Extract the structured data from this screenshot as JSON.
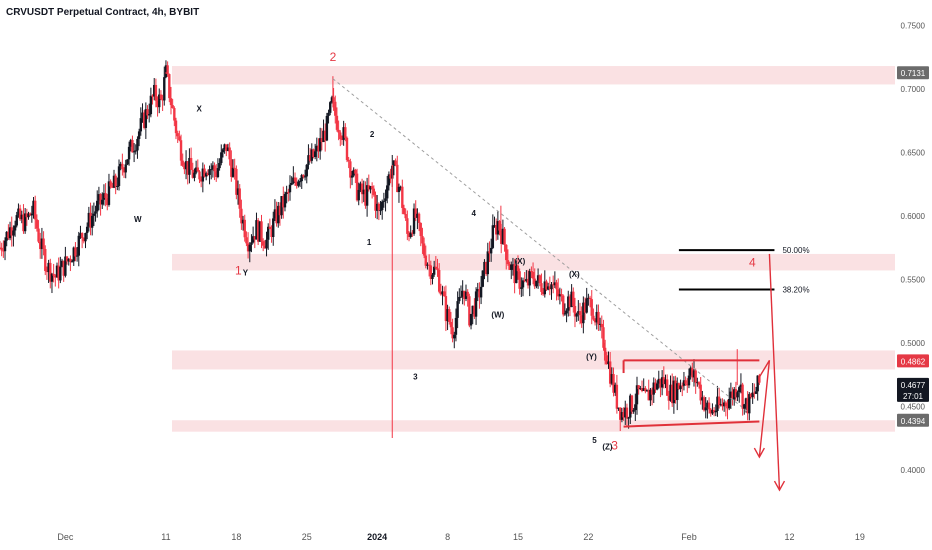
{
  "title": "CRVUSDT Perpetual Contract, 4h, BYBIT",
  "colors": {
    "up": "#131722",
    "down": "#f23645",
    "zone": "#f8d7da",
    "wave_red": "#e0303a",
    "dashed": "#9e9e9e",
    "label_dark": "#4a4a4a",
    "label_red": "#e53945",
    "label_black": "#131722"
  },
  "chart_data": {
    "type": "candlestick",
    "ylim": [
      0.3762,
      0.7637
    ],
    "y_ticks": [
      0.4,
      0.45,
      0.5,
      0.55,
      0.6,
      0.65,
      0.7,
      0.75
    ],
    "y_tick_labels": [
      "0.4000",
      "0.4500",
      "0.5000",
      "0.5500",
      "0.6000",
      "0.6500",
      "0.7000",
      "0.7500"
    ],
    "x_range_days": [
      -6.5,
      80
    ],
    "x_ticks": [
      {
        "label": "Dec",
        "day": 0,
        "bold": false
      },
      {
        "label": "11",
        "day": 10,
        "bold": false
      },
      {
        "label": "18",
        "day": 17,
        "bold": false
      },
      {
        "label": "25",
        "day": 24,
        "bold": false
      },
      {
        "label": "2024",
        "day": 31,
        "bold": true
      },
      {
        "label": "8",
        "day": 38,
        "bold": false
      },
      {
        "label": "15",
        "day": 45,
        "bold": false
      },
      {
        "label": "22",
        "day": 52,
        "bold": false
      },
      {
        "label": "Feb",
        "day": 62,
        "bold": false
      },
      {
        "label": "12",
        "day": 72,
        "bold": false
      },
      {
        "label": "19",
        "day": 79,
        "bold": false
      }
    ],
    "price_path": [
      [
        -6.5,
        0.575
      ],
      [
        -5.8,
        0.585
      ],
      [
        -5.0,
        0.598
      ],
      [
        -4.0,
        0.595
      ],
      [
        -3.2,
        0.605
      ],
      [
        -2.5,
        0.578
      ],
      [
        -1.8,
        0.56
      ],
      [
        -1.0,
        0.552
      ],
      [
        0.0,
        0.562
      ],
      [
        1.0,
        0.575
      ],
      [
        2.0,
        0.59
      ],
      [
        3.0,
        0.605
      ],
      [
        4.0,
        0.615
      ],
      [
        5.0,
        0.625
      ],
      [
        6.0,
        0.645
      ],
      [
        7.0,
        0.66
      ],
      [
        8.0,
        0.68
      ],
      [
        8.8,
        0.695
      ],
      [
        9.5,
        0.69
      ],
      [
        10.0,
        0.712
      ],
      [
        10.5,
        0.69
      ],
      [
        11.2,
        0.66
      ],
      [
        12.0,
        0.64
      ],
      [
        13.0,
        0.63
      ],
      [
        14.0,
        0.64
      ],
      [
        15.0,
        0.635
      ],
      [
        16.0,
        0.655
      ],
      [
        16.8,
        0.63
      ],
      [
        17.5,
        0.6
      ],
      [
        18.2,
        0.58
      ],
      [
        19.0,
        0.59
      ],
      [
        20.0,
        0.58
      ],
      [
        21.0,
        0.6
      ],
      [
        22.0,
        0.615
      ],
      [
        23.0,
        0.63
      ],
      [
        24.0,
        0.64
      ],
      [
        25.0,
        0.65
      ],
      [
        26.0,
        0.67
      ],
      [
        26.5,
        0.688
      ],
      [
        27.0,
        0.675
      ],
      [
        27.6,
        0.665
      ],
      [
        28.3,
        0.64
      ],
      [
        29.0,
        0.62
      ],
      [
        29.8,
        0.615
      ],
      [
        30.5,
        0.62
      ],
      [
        31.2,
        0.6
      ],
      [
        31.8,
        0.62
      ],
      [
        32.5,
        0.64
      ],
      [
        33.3,
        0.62
      ],
      [
        34.0,
        0.585
      ],
      [
        34.8,
        0.6
      ],
      [
        35.5,
        0.575
      ],
      [
        36.2,
        0.56
      ],
      [
        37.0,
        0.555
      ],
      [
        37.8,
        0.525
      ],
      [
        38.5,
        0.51
      ],
      [
        39.0,
        0.525
      ],
      [
        39.6,
        0.545
      ],
      [
        40.2,
        0.52
      ],
      [
        41.0,
        0.535
      ],
      [
        41.8,
        0.56
      ],
      [
        42.5,
        0.585
      ],
      [
        43.0,
        0.595
      ],
      [
        43.6,
        0.58
      ],
      [
        44.2,
        0.56
      ],
      [
        45.0,
        0.55
      ],
      [
        45.8,
        0.545
      ],
      [
        46.5,
        0.553
      ],
      [
        47.2,
        0.545
      ],
      [
        48.0,
        0.55
      ],
      [
        48.8,
        0.54
      ],
      [
        49.5,
        0.53
      ],
      [
        50.2,
        0.535
      ],
      [
        51.0,
        0.52
      ],
      [
        51.8,
        0.53
      ],
      [
        52.4,
        0.53
      ],
      [
        53.0,
        0.51
      ],
      [
        53.6,
        0.5
      ],
      [
        54.2,
        0.475
      ],
      [
        54.8,
        0.455
      ],
      [
        55.3,
        0.445
      ],
      [
        55.8,
        0.447
      ],
      [
        56.4,
        0.452
      ],
      [
        57.0,
        0.46
      ],
      [
        57.6,
        0.455
      ],
      [
        58.2,
        0.462
      ],
      [
        58.8,
        0.468
      ],
      [
        59.5,
        0.47
      ],
      [
        60.2,
        0.46
      ],
      [
        60.8,
        0.465
      ],
      [
        61.5,
        0.472
      ],
      [
        62.2,
        0.475
      ],
      [
        62.8,
        0.47
      ],
      [
        63.4,
        0.455
      ],
      [
        64.0,
        0.445
      ],
      [
        64.6,
        0.448
      ],
      [
        65.2,
        0.45
      ],
      [
        65.8,
        0.455
      ],
      [
        66.4,
        0.46
      ],
      [
        67.0,
        0.47
      ],
      [
        67.5,
        0.45
      ],
      [
        68.0,
        0.452
      ],
      [
        68.5,
        0.46
      ],
      [
        69.0,
        0.468
      ]
    ],
    "spikes": [
      {
        "day": 10.0,
        "high": 0.7131
      },
      {
        "day": 26.6,
        "high": 0.71
      },
      {
        "day": 32.5,
        "low": 0.425
      },
      {
        "day": 43.3,
        "high": 0.608
      },
      {
        "day": 53.6,
        "low": 0.486
      },
      {
        "day": 66.8,
        "high": 0.495
      }
    ],
    "zones": [
      {
        "top": 0.718,
        "bottom": 0.7035
      },
      {
        "top": 0.57,
        "bottom": 0.557
      },
      {
        "top": 0.494,
        "bottom": 0.479
      },
      {
        "top": 0.439,
        "bottom": 0.43
      }
    ],
    "fib_levels": [
      {
        "label": "50.00%",
        "price": 0.573,
        "day_start": 61.0,
        "day_end": 70.5
      },
      {
        "label": "38.20%",
        "price": 0.542,
        "day_start": 61.0,
        "day_end": 70.5
      }
    ],
    "range_box": {
      "top": 0.4862,
      "bottom": 0.434,
      "day_start": 55.5,
      "day_end": 69.0
    },
    "trendline": {
      "day_start": 26.6,
      "price_start": 0.708,
      "day_end": 67.8,
      "price_end": 0.446
    },
    "arrows": [
      {
        "day_start": 69.0,
        "price_start": 0.473,
        "day_mid": 70.0,
        "price_mid": 0.4862,
        "day_end": 69.0,
        "price_end": 0.41
      },
      {
        "day_start": 70.0,
        "price_start": 0.57,
        "day_end": 71.0,
        "price_end": 0.384
      }
    ],
    "wave_labels": [
      {
        "text": "2",
        "day": 26.6,
        "price": 0.722,
        "style": "red-big"
      },
      {
        "text": "1",
        "day": 17.2,
        "price": 0.554,
        "style": "red-big"
      },
      {
        "text": "3",
        "day": 54.6,
        "price": 0.416,
        "style": "red-big"
      },
      {
        "text": "4",
        "day": 68.3,
        "price": 0.56,
        "style": "red-big"
      },
      {
        "text": "X",
        "day": 13.3,
        "price": 0.682,
        "style": "black-small"
      },
      {
        "text": "W",
        "day": 7.2,
        "price": 0.595,
        "style": "black-small"
      },
      {
        "text": "Y",
        "day": 17.9,
        "price": 0.553,
        "style": "black-small"
      },
      {
        "text": "2",
        "day": 30.5,
        "price": 0.662,
        "style": "black-small"
      },
      {
        "text": "1",
        "day": 30.2,
        "price": 0.577,
        "style": "black-small"
      },
      {
        "text": "3",
        "day": 34.8,
        "price": 0.471,
        "style": "black-small"
      },
      {
        "text": "4",
        "day": 40.6,
        "price": 0.6,
        "style": "black-small"
      },
      {
        "text": "5",
        "day": 52.6,
        "price": 0.421,
        "style": "black-small"
      },
      {
        "text": "(X)",
        "day": 45.2,
        "price": 0.562,
        "style": "black-small"
      },
      {
        "text": "(X)",
        "day": 50.6,
        "price": 0.552,
        "style": "black-small"
      },
      {
        "text": "(W)",
        "day": 43.0,
        "price": 0.52,
        "style": "black-small"
      },
      {
        "text": "(Y)",
        "day": 52.3,
        "price": 0.487,
        "style": "black-small"
      },
      {
        "text": "(Z)",
        "day": 53.9,
        "price": 0.416,
        "style": "black-small"
      }
    ],
    "price_badges": [
      {
        "text": "0.7131",
        "price": 0.7131,
        "bg": "#6b6b6b",
        "fg": "#ffffff"
      },
      {
        "text": "0.4862",
        "price": 0.4862,
        "bg": "#e53945",
        "fg": "#ffffff"
      },
      {
        "text": "0.4677",
        "price": 0.4677,
        "bg": "#131722",
        "fg": "#ffffff",
        "sub": "27:01"
      },
      {
        "text": "0.4394",
        "price": 0.4394,
        "bg": "#6b6b6b",
        "fg": "#ffffff"
      }
    ]
  }
}
